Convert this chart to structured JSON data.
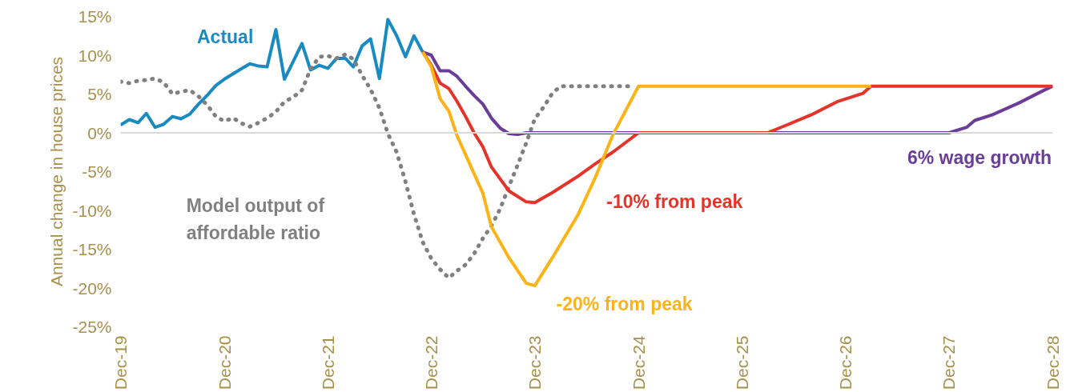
{
  "chart_data": {
    "type": "line",
    "ylabel": "Annual change in house prices",
    "xlim": [
      "2019-12",
      "2028-12"
    ],
    "ylim": [
      -25,
      15
    ],
    "xticks": [
      {
        "value": "2019-12",
        "label": "Dec-19"
      },
      {
        "value": "2020-12",
        "label": "Dec-20"
      },
      {
        "value": "2021-12",
        "label": "Dec-21"
      },
      {
        "value": "2022-12",
        "label": "Dec-22"
      },
      {
        "value": "2023-12",
        "label": "Dec-23"
      },
      {
        "value": "2024-12",
        "label": "Dec-24"
      },
      {
        "value": "2025-12",
        "label": "Dec-25"
      },
      {
        "value": "2026-12",
        "label": "Dec-26"
      },
      {
        "value": "2027-12",
        "label": "Dec-27"
      },
      {
        "value": "2028-12",
        "label": "Dec-28"
      }
    ],
    "yticks": [
      {
        "value": 15,
        "label": "15%"
      },
      {
        "value": 10,
        "label": "10%"
      },
      {
        "value": 5,
        "label": "5%"
      },
      {
        "value": 0,
        "label": "0%"
      },
      {
        "value": -5,
        "label": "-5%"
      },
      {
        "value": -10,
        "label": "-10%"
      },
      {
        "value": -15,
        "label": "-15%"
      },
      {
        "value": -20,
        "label": "-20%"
      },
      {
        "value": -25,
        "label": "-25%"
      }
    ],
    "grid": false,
    "marker": "none",
    "ref_lines": [
      {
        "axis": "y",
        "value": 0,
        "color": "#d9d9d9"
      }
    ],
    "series": [
      {
        "name": "Actual",
        "color": "#1a8bc0",
        "line_style": "solid",
        "x": [
          "2019-12",
          "2020-01",
          "2020-02",
          "2020-03",
          "2020-04",
          "2020-05",
          "2020-06",
          "2020-07",
          "2020-08",
          "2020-09",
          "2020-10",
          "2020-11",
          "2020-12",
          "2021-01",
          "2021-02",
          "2021-03",
          "2021-04",
          "2021-05",
          "2021-06",
          "2021-07",
          "2021-08",
          "2021-09",
          "2021-10",
          "2021-11",
          "2021-12",
          "2022-01",
          "2022-02",
          "2022-03",
          "2022-04",
          "2022-05",
          "2022-06",
          "2022-07",
          "2022-08",
          "2022-09",
          "2022-10",
          "2022-11"
        ],
        "values": [
          1.0,
          1.7,
          1.3,
          2.5,
          0.7,
          1.1,
          2.1,
          1.8,
          2.4,
          3.7,
          4.8,
          6.1,
          6.9,
          7.6,
          8.3,
          8.9,
          8.6,
          8.5,
          13.3,
          6.9,
          9.2,
          11.5,
          8.1,
          8.7,
          8.3,
          9.6,
          9.6,
          8.5,
          11.2,
          12.1,
          7.0,
          14.6,
          12.5,
          9.8,
          12.5,
          10.4
        ]
      },
      {
        "name": "Model output of affordable ratio",
        "color": "#808080",
        "line_style": "dotted",
        "x": [
          "2019-12",
          "2020-01",
          "2020-02",
          "2020-03",
          "2020-04",
          "2020-05",
          "2020-06",
          "2020-07",
          "2020-08",
          "2020-09",
          "2020-10",
          "2020-11",
          "2020-12",
          "2021-01",
          "2021-02",
          "2021-03",
          "2021-04",
          "2021-05",
          "2021-06",
          "2021-07",
          "2021-08",
          "2021-09",
          "2021-10",
          "2021-11",
          "2021-12",
          "2022-01",
          "2022-02",
          "2022-03",
          "2022-04",
          "2022-05",
          "2022-06",
          "2022-07",
          "2022-08",
          "2022-09",
          "2022-10",
          "2022-11",
          "2022-12",
          "2023-01",
          "2023-02",
          "2023-03",
          "2023-04",
          "2023-05",
          "2023-06",
          "2023-07",
          "2023-08",
          "2023-09",
          "2023-10",
          "2023-11",
          "2023-12",
          "2024-01",
          "2024-02",
          "2024-03",
          "2024-11"
        ],
        "values": [
          6.6,
          6.4,
          6.7,
          6.8,
          7.0,
          6.5,
          5.0,
          5.3,
          5.5,
          4.7,
          3.6,
          2.1,
          1.5,
          1.9,
          1.2,
          0.8,
          1.3,
          1.9,
          2.7,
          4.0,
          4.6,
          5.5,
          8.2,
          9.8,
          9.9,
          9.6,
          10.1,
          9.5,
          7.4,
          5.6,
          3.2,
          -0.1,
          -2.5,
          -6.3,
          -10.5,
          -14.1,
          -16.2,
          -17.6,
          -18.7,
          -17.8,
          -17.0,
          -15.6,
          -13.6,
          -12.0,
          -9.8,
          -6.9,
          -4.2,
          -1.3,
          1.8,
          3.3,
          5.1,
          6.0,
          6.0
        ]
      },
      {
        "name": "6% wage growth",
        "color": "#6a3d98",
        "line_style": "solid",
        "x": [
          "2022-11",
          "2022-12",
          "2023-01",
          "2023-02",
          "2023-03",
          "2023-04",
          "2023-05",
          "2023-06",
          "2023-07",
          "2023-08",
          "2023-09",
          "2023-10",
          "2023-11",
          "2027-12",
          "2028-02",
          "2028-03",
          "2028-05",
          "2028-08",
          "2028-11",
          "2028-12"
        ],
        "values": [
          10.4,
          10.0,
          8.0,
          8.0,
          7.3,
          6.0,
          4.8,
          3.7,
          1.9,
          0.6,
          -0.1,
          -0.2,
          0,
          0,
          0.7,
          1.6,
          2.3,
          3.8,
          5.5,
          6.0
        ]
      },
      {
        "name": "-10% from peak",
        "color": "#e63329",
        "line_style": "solid",
        "x": [
          "2022-11",
          "2022-12",
          "2023-01",
          "2023-02",
          "2023-03",
          "2023-04",
          "2023-05",
          "2023-06",
          "2023-07",
          "2023-09",
          "2023-11",
          "2023-12",
          "2024-02",
          "2024-05",
          "2024-07",
          "2024-09",
          "2024-12",
          "2026-03",
          "2026-05",
          "2026-08",
          "2026-11",
          "2027-02",
          "2027-03",
          "2028-12"
        ],
        "values": [
          10.4,
          8.7,
          6.4,
          5.7,
          4.1,
          2.1,
          0,
          -1.8,
          -4.4,
          -7.5,
          -8.9,
          -9.0,
          -7.7,
          -5.6,
          -4.0,
          -2.5,
          0,
          0,
          0.9,
          2.3,
          4.0,
          5.1,
          6.0,
          6.0
        ]
      },
      {
        "name": "-20% from peak",
        "color": "#fbb316",
        "line_style": "solid",
        "x": [
          "2022-11",
          "2022-12",
          "2023-01",
          "2023-02",
          "2023-03",
          "2023-06",
          "2023-07",
          "2023-09",
          "2023-11",
          "2023-12",
          "2024-02",
          "2024-05",
          "2024-07",
          "2024-09",
          "2024-12",
          "2027-03"
        ],
        "values": [
          10.4,
          8.5,
          4.4,
          2.8,
          -0.3,
          -7.8,
          -12.1,
          -16.1,
          -19.4,
          -19.7,
          -16.1,
          -10.6,
          -5.8,
          -0.3,
          6.0,
          6.0
        ]
      }
    ]
  }
}
